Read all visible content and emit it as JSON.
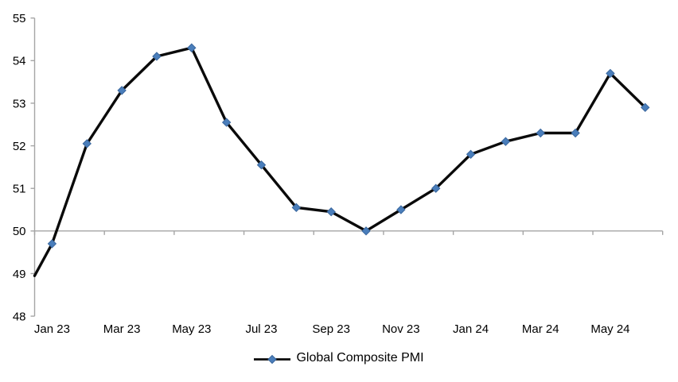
{
  "chart_data": {
    "type": "line",
    "title": "",
    "xlabel": "",
    "ylabel": "",
    "categories": [
      "Jan 23",
      "Feb 23",
      "Mar 23",
      "Apr 23",
      "May 23",
      "Jun 23",
      "Jul 23",
      "Aug 23",
      "Sep 23",
      "Oct 23",
      "Nov 23",
      "Dec 23",
      "Jan 24",
      "Feb 24",
      "Mar 24",
      "Apr 24",
      "May 24",
      "Jun 24"
    ],
    "series": [
      {
        "name": "Global Composite PMI",
        "values": [
          49.7,
          52.05,
          53.3,
          54.1,
          54.3,
          52.55,
          51.55,
          50.55,
          50.45,
          50.0,
          50.5,
          51.0,
          51.8,
          52.1,
          52.3,
          52.3,
          53.7,
          52.9
        ],
        "lead_in_edge_value": 48.95,
        "marker": "diamond"
      }
    ],
    "x_axis": {
      "tick_labels": [
        "Jan 23",
        "Mar 23",
        "May 23",
        "Jul 23",
        "Sep 23",
        "Nov 23",
        "Jan 24",
        "Mar 24",
        "May 24"
      ],
      "label_every_n_categories": 2,
      "axis_position_value": 50
    },
    "y_axis": {
      "min": 48,
      "max": 55,
      "step": 1,
      "tick_labels": [
        "48",
        "49",
        "50",
        "51",
        "52",
        "53",
        "54",
        "55"
      ]
    },
    "legend": {
      "position": "bottom-center",
      "entries": [
        "Global Composite PMI"
      ]
    },
    "grid": false,
    "colors": {
      "line": "#0a0a0a",
      "marker_fill": "#4a7ebb",
      "marker_edge": "#3a679e",
      "axis": "#a5a5a5",
      "text": "#000000",
      "background": "#ffffff"
    }
  }
}
